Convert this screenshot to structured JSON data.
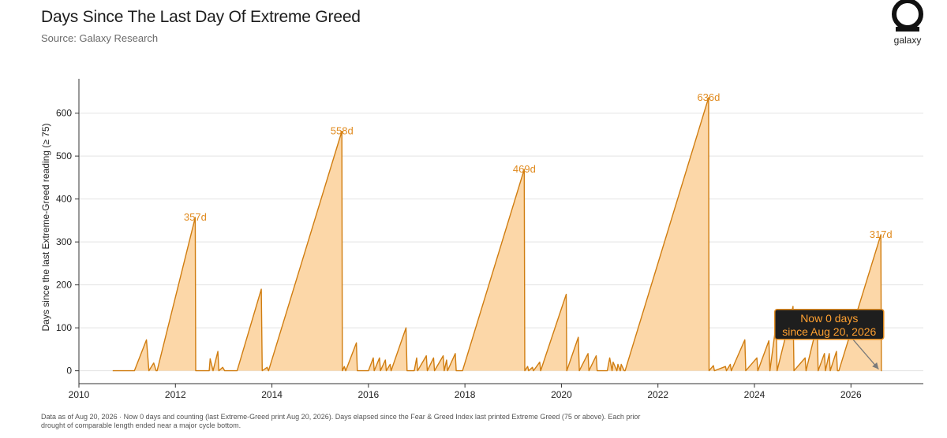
{
  "header": {
    "title": "Days Since The Last Day Of Extreme Greed",
    "subtitle": "Source: Galaxy Research",
    "logo_text": "galaxy"
  },
  "footnote": {
    "line1": "Data as of Aug 20, 2026 · Now 0 days and counting (last Extreme-Greed print Aug 20, 2026). Days elapsed since the Fear & Greed Index last printed Extreme Greed (75 or above). Each prior",
    "line2": "drought of comparable length ended near a major cycle bottom."
  },
  "colors": {
    "line": "#d07d10",
    "fill": "#fcd7a8",
    "label": "#e08a1e",
    "annotation_bg": "#1e1e1e",
    "annotation_border": "#e08a1e",
    "annotation_text": "#ffa030"
  },
  "chart_data": {
    "type": "area",
    "title": "",
    "xlabel": "",
    "ylabel": "Days since the last Extreme-Greed reading (≥ 75)",
    "xlim": [
      2010.0,
      2027.5
    ],
    "ylim": [
      -30,
      680
    ],
    "x_ticks": [
      2010,
      2012,
      2014,
      2016,
      2018,
      2020,
      2022,
      2024,
      2026
    ],
    "y_ticks": [
      0,
      100,
      200,
      300,
      400,
      500,
      600
    ],
    "grid": "horizontal",
    "series": [
      {
        "x": [
          2010.7,
          2011.15,
          2011.4,
          2011.45,
          2011.55,
          2011.6,
          2011.62,
          2012.41,
          2012.42,
          2012.7,
          2012.72,
          2012.78,
          2012.88,
          2012.9,
          2012.98,
          2013.02,
          2013.28,
          2013.78,
          2013.8,
          2013.9,
          2013.93,
          2015.45,
          2015.46,
          2015.5,
          2015.53,
          2015.75,
          2015.77,
          2016.0,
          2016.1,
          2016.12,
          2016.23,
          2016.25,
          2016.35,
          2016.37,
          2016.45,
          2016.47,
          2016.78,
          2016.8,
          2016.95,
          2017.0,
          2017.02,
          2017.2,
          2017.22,
          2017.35,
          2017.37,
          2017.55,
          2017.57,
          2017.62,
          2017.64,
          2017.8,
          2017.82,
          2017.95,
          2019.23,
          2019.24,
          2019.3,
          2019.32,
          2019.4,
          2019.42,
          2019.55,
          2019.57,
          2019.57,
          2020.1,
          2020.11,
          2020.35,
          2020.37,
          2020.55,
          2020.57,
          2020.72,
          2020.74,
          2020.95,
          2021.0,
          2021.05,
          2021.07,
          2021.15,
          2021.17,
          2021.22,
          2021.24,
          2021.3,
          2021.32,
          2023.05,
          2023.06,
          2023.15,
          2023.17,
          2023.4,
          2023.42,
          2023.5,
          2023.52,
          2023.8,
          2023.82,
          2024.05,
          2024.07,
          2024.3,
          2024.32,
          2024.45,
          2024.47,
          2024.8,
          2024.82,
          2025.05,
          2025.07,
          2025.3,
          2025.32,
          2025.45,
          2025.47,
          2025.55,
          2025.57,
          2025.7,
          2025.72,
          2025.75,
          2026.62,
          2026.63,
          2026.64
        ],
        "y": [
          0,
          0,
          72,
          0,
          18,
          0,
          0,
          357,
          0,
          0,
          28,
          0,
          45,
          0,
          8,
          0,
          0,
          190,
          0,
          8,
          0,
          558,
          0,
          10,
          0,
          65,
          0,
          0,
          30,
          0,
          30,
          0,
          25,
          0,
          15,
          0,
          100,
          0,
          0,
          30,
          0,
          35,
          0,
          30,
          0,
          35,
          0,
          25,
          0,
          40,
          0,
          0,
          469,
          0,
          10,
          0,
          8,
          0,
          20,
          0,
          0,
          178,
          0,
          78,
          0,
          40,
          0,
          35,
          0,
          0,
          30,
          0,
          20,
          0,
          15,
          0,
          15,
          0,
          0,
          636,
          0,
          12,
          0,
          10,
          0,
          15,
          0,
          72,
          0,
          30,
          0,
          70,
          0,
          110,
          0,
          150,
          0,
          30,
          0,
          108,
          0,
          40,
          0,
          40,
          0,
          45,
          0,
          0,
          317,
          0,
          0
        ]
      }
    ],
    "peak_labels": [
      {
        "x": 2012.41,
        "y": 357,
        "text": "357d"
      },
      {
        "x": 2015.45,
        "y": 558,
        "text": "558d"
      },
      {
        "x": 2019.23,
        "y": 469,
        "text": "469d"
      },
      {
        "x": 2023.05,
        "y": 636,
        "text": "636d"
      },
      {
        "x": 2026.62,
        "y": 317,
        "text": "317d"
      }
    ],
    "annotation": {
      "line1": "Now 0 days",
      "line2": "since Aug 20, 2026",
      "box_x": 2025.55,
      "box_y": 108,
      "target_x": 2026.64,
      "target_y": 0
    }
  }
}
